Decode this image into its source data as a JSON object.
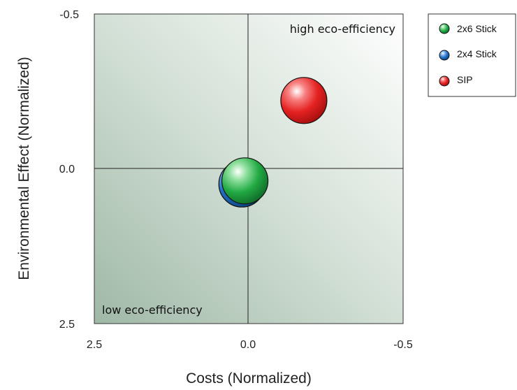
{
  "chart_data": {
    "type": "scatter",
    "title": "",
    "xlabel": "Costs (Normalized)",
    "ylabel": "Environmental Effect (Normalized)",
    "x_reversed": true,
    "y_reversed": true,
    "xlim": [
      2.5,
      -0.5
    ],
    "ylim": [
      -0.5,
      2.5
    ],
    "x_ticks": [
      "2.5",
      "0.0",
      "-0.5"
    ],
    "y_ticks": [
      "-0.5",
      "0.0",
      "2.5"
    ],
    "annotations": {
      "top_right": "high eco-efficiency",
      "bottom_left": "low eco-efficiency"
    },
    "legend_position": "top-right",
    "series": [
      {
        "name": "2x6 Stick",
        "x": 0.05,
        "y": 0.2,
        "color": "#22aa44"
      },
      {
        "name": "2x4 Stick",
        "x": 0.1,
        "y": 0.25,
        "color": "#1f6fc4"
      },
      {
        "name": "SIP",
        "x": -0.18,
        "y": -0.22,
        "color": "#e02020"
      }
    ]
  }
}
